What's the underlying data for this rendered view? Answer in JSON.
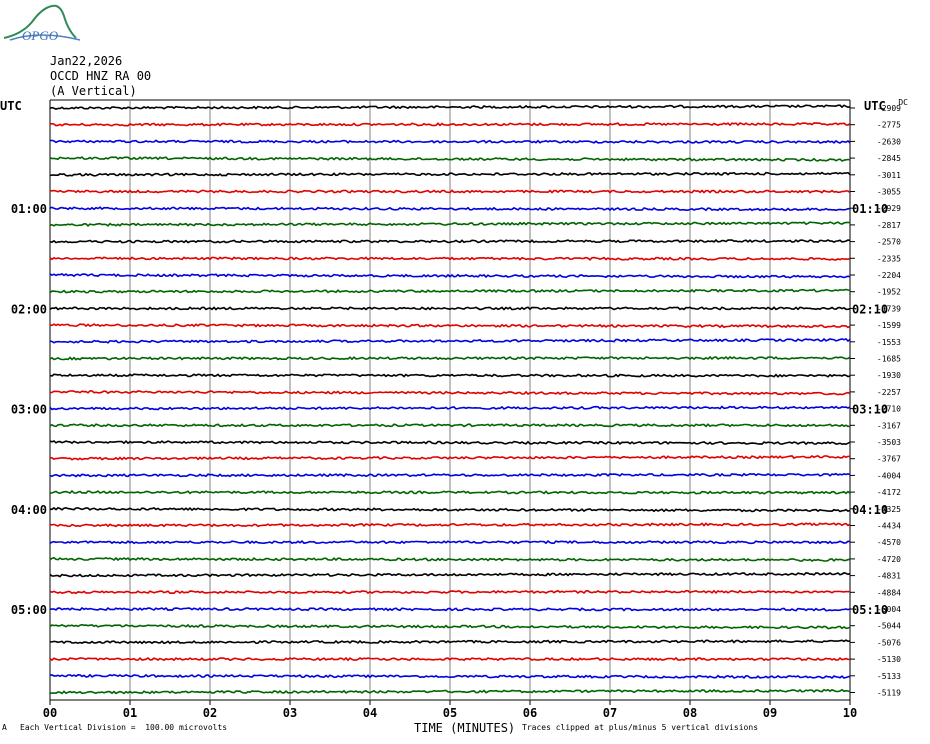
{
  "logo": {
    "text": "OPGO"
  },
  "header": {
    "date": "Jan22,2026",
    "station": "OCCD HNZ RA 00",
    "component": "(A Vertical)"
  },
  "left_axis_title": "UTC",
  "right_axis_title": "UTC",
  "right_axis_extra": "DC",
  "footer": {
    "division_note": "Each Vertical Division =  100.00 microvolts",
    "xaxis_title": "TIME (MINUTES)",
    "clip_note": "Traces clipped at plus/minus 5 vertical divisions",
    "corner_mark": "A"
  },
  "colors": {
    "cycle": [
      "#000000",
      "#e00000",
      "#0000e0",
      "#006400"
    ],
    "grid": "#808080",
    "frame": "#000000"
  },
  "chart_data": {
    "type": "line",
    "title": "OCCD HNZ RA 00",
    "xlabel": "TIME (MINUTES)",
    "x_ticks": [
      "00",
      "01",
      "02",
      "03",
      "04",
      "05",
      "06",
      "07",
      "08",
      "09",
      "10"
    ],
    "xlim": [
      0,
      10
    ],
    "minutes_per_trace": 10,
    "division_microvolts": 100.0,
    "left_time_labels": [
      {
        "trace": 6,
        "label": "01:00"
      },
      {
        "trace": 12,
        "label": "02:00"
      },
      {
        "trace": 18,
        "label": "03:00"
      },
      {
        "trace": 24,
        "label": "04:00"
      },
      {
        "trace": 30,
        "label": "05:00"
      }
    ],
    "right_time_labels": [
      {
        "trace": 6,
        "label": "01:10"
      },
      {
        "trace": 12,
        "label": "02:10"
      },
      {
        "trace": 18,
        "label": "03:10"
      },
      {
        "trace": 24,
        "label": "04:10"
      },
      {
        "trace": 30,
        "label": "05:10"
      }
    ],
    "dc_offsets": [
      "-2909",
      "-2775",
      "-2630",
      "-2845",
      "-3011",
      "-3055",
      "-2929",
      "-2817",
      "-2570",
      "-2335",
      "-2204",
      "-1952",
      "-1739",
      "-1599",
      "-1553",
      "-1685",
      "-1930",
      "-2257",
      "-2710",
      "-3167",
      "-3503",
      "-3767",
      "-4004",
      "-4172",
      "-4325",
      "-4434",
      "-4570",
      "-4720",
      "-4831",
      "-4884",
      "-5004",
      "-5044",
      "-5076",
      "-5130",
      "-5133",
      "-5119"
    ],
    "trace_count": 36
  }
}
